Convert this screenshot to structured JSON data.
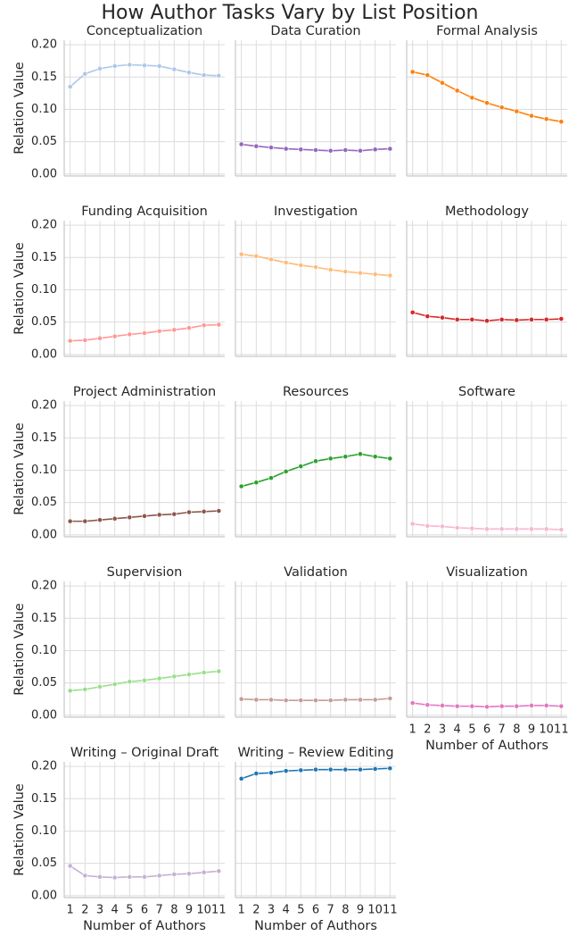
{
  "title": "How Author Tasks Vary by List Position",
  "chart_data": [
    {
      "type": "line",
      "title": "Conceptualization",
      "ylabel": "Relation Value",
      "x": [
        1,
        2,
        3,
        4,
        5,
        6,
        7,
        8,
        9,
        10,
        11
      ],
      "values": [
        0.135,
        0.155,
        0.163,
        0.167,
        0.169,
        0.168,
        0.167,
        0.162,
        0.157,
        0.153,
        0.152
      ],
      "color": "#aec7e8",
      "xlim": [
        0.6,
        11.4
      ],
      "ylim": [
        -0.003,
        0.207
      ],
      "xticks": [
        1,
        2,
        3,
        4,
        5,
        6,
        7,
        8,
        9,
        10,
        11
      ],
      "yticks": [
        {
          "value": 0,
          "label": "0.00"
        },
        {
          "value": 0.05,
          "label": "0.05"
        },
        {
          "value": 0.1,
          "label": "0.10"
        },
        {
          "value": 0.15,
          "label": "0.15"
        },
        {
          "value": 0.2,
          "label": "0.20"
        }
      ],
      "grid": true
    },
    {
      "type": "line",
      "title": "Data Curation",
      "x": [
        1,
        2,
        3,
        4,
        5,
        6,
        7,
        8,
        9,
        10,
        11
      ],
      "values": [
        0.046,
        0.043,
        0.041,
        0.039,
        0.038,
        0.037,
        0.036,
        0.037,
        0.036,
        0.038,
        0.039
      ],
      "color": "#9467bd",
      "xlim": [
        0.6,
        11.4
      ],
      "ylim": [
        -0.003,
        0.207
      ],
      "xticks": [
        1,
        2,
        3,
        4,
        5,
        6,
        7,
        8,
        9,
        10,
        11
      ],
      "yticks": [
        0,
        0.05,
        0.1,
        0.15,
        0.2
      ],
      "grid": true
    },
    {
      "type": "line",
      "title": "Formal Analysis",
      "x": [
        1,
        2,
        3,
        4,
        5,
        6,
        7,
        8,
        9,
        10,
        11
      ],
      "values": [
        0.158,
        0.153,
        0.141,
        0.129,
        0.118,
        0.11,
        0.103,
        0.097,
        0.09,
        0.085,
        0.081
      ],
      "color": "#ff7f0e",
      "xlim": [
        0.6,
        11.4
      ],
      "ylim": [
        -0.003,
        0.207
      ],
      "xticks": [
        1,
        2,
        3,
        4,
        5,
        6,
        7,
        8,
        9,
        10,
        11
      ],
      "yticks": [
        0,
        0.05,
        0.1,
        0.15,
        0.2
      ],
      "grid": true
    },
    {
      "type": "line",
      "title": "Funding Acquisition",
      "ylabel": "Relation Value",
      "x": [
        1,
        2,
        3,
        4,
        5,
        6,
        7,
        8,
        9,
        10,
        11
      ],
      "values": [
        0.021,
        0.022,
        0.025,
        0.028,
        0.031,
        0.033,
        0.036,
        0.038,
        0.041,
        0.045,
        0.046
      ],
      "color": "#ff9896",
      "xlim": [
        0.6,
        11.4
      ],
      "ylim": [
        -0.003,
        0.207
      ],
      "xticks": [
        1,
        2,
        3,
        4,
        5,
        6,
        7,
        8,
        9,
        10,
        11
      ],
      "yticks": [
        {
          "value": 0,
          "label": "0.00"
        },
        {
          "value": 0.05,
          "label": "0.05"
        },
        {
          "value": 0.1,
          "label": "0.10"
        },
        {
          "value": 0.15,
          "label": "0.15"
        },
        {
          "value": 0.2,
          "label": "0.20"
        }
      ],
      "grid": true
    },
    {
      "type": "line",
      "title": "Investigation",
      "x": [
        1,
        2,
        3,
        4,
        5,
        6,
        7,
        8,
        9,
        10,
        11
      ],
      "values": [
        0.155,
        0.152,
        0.147,
        0.142,
        0.138,
        0.135,
        0.131,
        0.128,
        0.126,
        0.124,
        0.122
      ],
      "color": "#ffbb78",
      "xlim": [
        0.6,
        11.4
      ],
      "ylim": [
        -0.003,
        0.207
      ],
      "xticks": [
        1,
        2,
        3,
        4,
        5,
        6,
        7,
        8,
        9,
        10,
        11
      ],
      "yticks": [
        0,
        0.05,
        0.1,
        0.15,
        0.2
      ],
      "grid": true
    },
    {
      "type": "line",
      "title": "Methodology",
      "x": [
        1,
        2,
        3,
        4,
        5,
        6,
        7,
        8,
        9,
        10,
        11
      ],
      "values": [
        0.065,
        0.059,
        0.057,
        0.054,
        0.054,
        0.052,
        0.054,
        0.053,
        0.054,
        0.054,
        0.055
      ],
      "color": "#d62728",
      "xlim": [
        0.6,
        11.4
      ],
      "ylim": [
        -0.003,
        0.207
      ],
      "xticks": [
        1,
        2,
        3,
        4,
        5,
        6,
        7,
        8,
        9,
        10,
        11
      ],
      "yticks": [
        0,
        0.05,
        0.1,
        0.15,
        0.2
      ],
      "grid": true
    },
    {
      "type": "line",
      "title": "Project Administration",
      "ylabel": "Relation Value",
      "x": [
        1,
        2,
        3,
        4,
        5,
        6,
        7,
        8,
        9,
        10,
        11
      ],
      "values": [
        0.021,
        0.021,
        0.023,
        0.025,
        0.027,
        0.029,
        0.031,
        0.032,
        0.035,
        0.036,
        0.037
      ],
      "color": "#8c564b",
      "xlim": [
        0.6,
        11.4
      ],
      "ylim": [
        -0.003,
        0.207
      ],
      "xticks": [
        1,
        2,
        3,
        4,
        5,
        6,
        7,
        8,
        9,
        10,
        11
      ],
      "yticks": [
        {
          "value": 0,
          "label": "0.00"
        },
        {
          "value": 0.05,
          "label": "0.05"
        },
        {
          "value": 0.1,
          "label": "0.10"
        },
        {
          "value": 0.15,
          "label": "0.15"
        },
        {
          "value": 0.2,
          "label": "0.20"
        }
      ],
      "grid": true
    },
    {
      "type": "line",
      "title": "Resources",
      "x": [
        1,
        2,
        3,
        4,
        5,
        6,
        7,
        8,
        9,
        10,
        11
      ],
      "values": [
        0.075,
        0.081,
        0.088,
        0.098,
        0.106,
        0.114,
        0.118,
        0.121,
        0.125,
        0.121,
        0.118
      ],
      "color": "#2ca02c",
      "xlim": [
        0.6,
        11.4
      ],
      "ylim": [
        -0.003,
        0.207
      ],
      "xticks": [
        1,
        2,
        3,
        4,
        5,
        6,
        7,
        8,
        9,
        10,
        11
      ],
      "yticks": [
        0,
        0.05,
        0.1,
        0.15,
        0.2
      ],
      "grid": true
    },
    {
      "type": "line",
      "title": "Software",
      "x": [
        1,
        2,
        3,
        4,
        5,
        6,
        7,
        8,
        9,
        10,
        11
      ],
      "values": [
        0.017,
        0.014,
        0.013,
        0.011,
        0.01,
        0.009,
        0.009,
        0.009,
        0.009,
        0.009,
        0.008
      ],
      "color": "#f7b6d2",
      "xlim": [
        0.6,
        11.4
      ],
      "ylim": [
        -0.003,
        0.207
      ],
      "xticks": [
        1,
        2,
        3,
        4,
        5,
        6,
        7,
        8,
        9,
        10,
        11
      ],
      "yticks": [
        0,
        0.05,
        0.1,
        0.15,
        0.2
      ],
      "grid": true
    },
    {
      "type": "line",
      "title": "Supervision",
      "ylabel": "Relation Value",
      "x": [
        1,
        2,
        3,
        4,
        5,
        6,
        7,
        8,
        9,
        10,
        11
      ],
      "values": [
        0.038,
        0.04,
        0.044,
        0.048,
        0.052,
        0.054,
        0.057,
        0.06,
        0.063,
        0.066,
        0.068
      ],
      "color": "#98df8a",
      "xlim": [
        0.6,
        11.4
      ],
      "ylim": [
        -0.003,
        0.207
      ],
      "xticks": [
        1,
        2,
        3,
        4,
        5,
        6,
        7,
        8,
        9,
        10,
        11
      ],
      "yticks": [
        {
          "value": 0,
          "label": "0.00"
        },
        {
          "value": 0.05,
          "label": "0.05"
        },
        {
          "value": 0.1,
          "label": "0.10"
        },
        {
          "value": 0.15,
          "label": "0.15"
        },
        {
          "value": 0.2,
          "label": "0.20"
        }
      ],
      "grid": true
    },
    {
      "type": "line",
      "title": "Validation",
      "x": [
        1,
        2,
        3,
        4,
        5,
        6,
        7,
        8,
        9,
        10,
        11
      ],
      "values": [
        0.025,
        0.024,
        0.024,
        0.023,
        0.023,
        0.023,
        0.023,
        0.024,
        0.024,
        0.024,
        0.026
      ],
      "color": "#c49c94",
      "xlim": [
        0.6,
        11.4
      ],
      "ylim": [
        -0.003,
        0.207
      ],
      "xticks": [
        1,
        2,
        3,
        4,
        5,
        6,
        7,
        8,
        9,
        10,
        11
      ],
      "yticks": [
        0,
        0.05,
        0.1,
        0.15,
        0.2
      ],
      "grid": true
    },
    {
      "type": "line",
      "title": "Visualization",
      "xlabel": "Number of Authors",
      "x": [
        1,
        2,
        3,
        4,
        5,
        6,
        7,
        8,
        9,
        10,
        11
      ],
      "values": [
        0.019,
        0.016,
        0.015,
        0.014,
        0.014,
        0.013,
        0.014,
        0.014,
        0.015,
        0.015,
        0.014
      ],
      "color": "#e377c2",
      "xlim": [
        0.6,
        11.4
      ],
      "ylim": [
        -0.003,
        0.207
      ],
      "xticks": [
        1,
        2,
        3,
        4,
        5,
        6,
        7,
        8,
        9,
        10,
        11
      ],
      "yticks": [
        0,
        0.05,
        0.1,
        0.15,
        0.2
      ],
      "grid": true
    },
    {
      "type": "line",
      "title": "Writing – Original Draft",
      "ylabel": "Relation Value",
      "xlabel": "Number of Authors",
      "x": [
        1,
        2,
        3,
        4,
        5,
        6,
        7,
        8,
        9,
        10,
        11
      ],
      "values": [
        0.046,
        0.031,
        0.029,
        0.028,
        0.029,
        0.029,
        0.031,
        0.033,
        0.034,
        0.036,
        0.038
      ],
      "color": "#c5b0d5",
      "xlim": [
        0.6,
        11.4
      ],
      "ylim": [
        -0.003,
        0.207
      ],
      "xticks": [
        1,
        2,
        3,
        4,
        5,
        6,
        7,
        8,
        9,
        10,
        11
      ],
      "yticks": [
        {
          "value": 0,
          "label": "0.00"
        },
        {
          "value": 0.05,
          "label": "0.05"
        },
        {
          "value": 0.1,
          "label": "0.10"
        },
        {
          "value": 0.15,
          "label": "0.15"
        },
        {
          "value": 0.2,
          "label": "0.20"
        }
      ],
      "grid": true
    },
    {
      "type": "line",
      "title": "Writing – Review Editing",
      "xlabel": "Number of Authors",
      "x": [
        1,
        2,
        3,
        4,
        5,
        6,
        7,
        8,
        9,
        10,
        11
      ],
      "values": [
        0.181,
        0.189,
        0.19,
        0.193,
        0.194,
        0.195,
        0.195,
        0.195,
        0.195,
        0.196,
        0.197
      ],
      "color": "#1f77b4",
      "xlim": [
        0.6,
        11.4
      ],
      "ylim": [
        -0.003,
        0.207
      ],
      "xticks": [
        1,
        2,
        3,
        4,
        5,
        6,
        7,
        8,
        9,
        10,
        11
      ],
      "yticks": [
        0,
        0.05,
        0.1,
        0.15,
        0.2
      ],
      "grid": true
    }
  ]
}
